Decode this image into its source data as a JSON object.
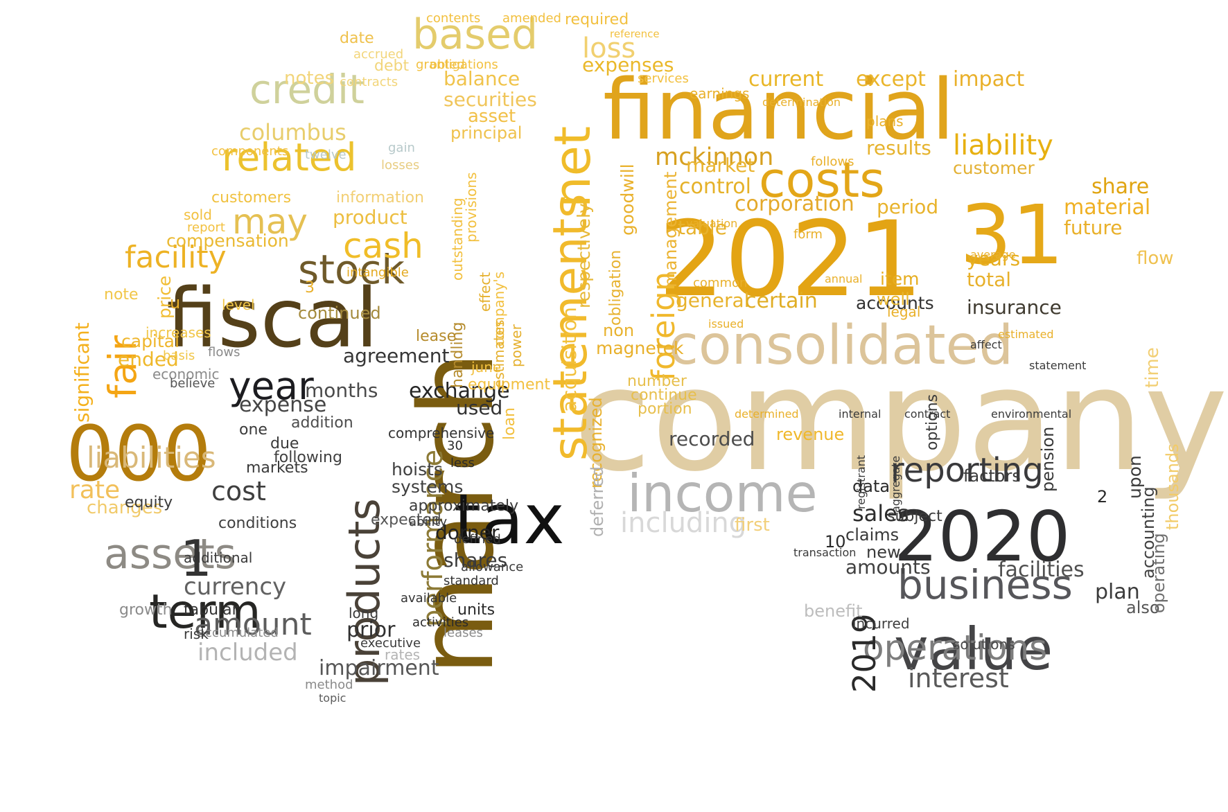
{
  "words": [
    {
      "text": "company",
      "color": "#e0cda4",
      "vertical": false
    },
    {
      "text": "2021",
      "color": "#e3a414",
      "vertical": false
    },
    {
      "text": "march",
      "color": "#7a5c10",
      "vertical": true
    },
    {
      "text": "financial",
      "color": "#e0a41c",
      "vertical": false
    },
    {
      "text": "fiscal",
      "color": "#544019",
      "vertical": false
    },
    {
      "text": "000",
      "color": "#b47c0c",
      "vertical": false
    },
    {
      "text": "tax",
      "color": "#111111",
      "vertical": false
    },
    {
      "text": "2020",
      "color": "#2e2e30",
      "vertical": false
    },
    {
      "text": "31",
      "color": "#e5a818",
      "vertical": false
    },
    {
      "text": "value",
      "color": "#444446",
      "vertical": false
    },
    {
      "text": "consolidated",
      "color": "#dcc49a",
      "vertical": false
    },
    {
      "text": "costs",
      "color": "#e3a618",
      "vertical": false
    },
    {
      "text": "business",
      "color": "#56565a",
      "vertical": false
    },
    {
      "text": "income",
      "color": "#b5b5b5",
      "vertical": false
    },
    {
      "text": "statements",
      "color": "#f1ba2c",
      "vertical": true
    },
    {
      "text": "products",
      "color": "#4a4238",
      "vertical": true
    },
    {
      "text": "net",
      "color": "#f0bc2a",
      "vertical": true
    },
    {
      "text": "assets",
      "color": "#8d8a84",
      "vertical": false
    },
    {
      "text": "term",
      "color": "#262624",
      "vertical": false
    },
    {
      "text": "stock",
      "color": "#6f5a2a",
      "vertical": false
    },
    {
      "text": "year",
      "color": "#1c1c20",
      "vertical": false
    },
    {
      "text": "credit",
      "color": "#cfd19b",
      "vertical": false
    },
    {
      "text": "based",
      "color": "#e4cc6c",
      "vertical": false
    },
    {
      "text": "related",
      "color": "#ecc22e",
      "vertical": false
    },
    {
      "text": "may",
      "color": "#e5c052",
      "vertical": false
    },
    {
      "text": "cash",
      "color": "#f0bd28",
      "vertical": false
    },
    {
      "text": "fair",
      "color": "#f4a514",
      "vertical": true
    },
    {
      "text": "reporting",
      "color": "#3a3a3c",
      "vertical": false
    },
    {
      "text": "operations",
      "color": "#7d7d7d",
      "vertical": false
    },
    {
      "text": "foreign",
      "color": "#f0b82c",
      "vertical": true
    },
    {
      "text": "2019",
      "color": "#2a2a2a",
      "vertical": true
    },
    {
      "text": "liability",
      "color": "#e7b010",
      "vertical": false
    },
    {
      "text": "liabilities",
      "color": "#d9b878",
      "vertical": false
    },
    {
      "text": "performance",
      "color": "#8c7a36",
      "vertical": true
    },
    {
      "text": "amount",
      "color": "#5c5c5c",
      "vertical": false
    },
    {
      "text": "interest",
      "color": "#595959",
      "vertical": false
    },
    {
      "text": "including",
      "color": "#d8d8d8",
      "vertical": false
    },
    {
      "text": "facility",
      "color": "#edb224",
      "vertical": false
    },
    {
      "text": "mckinnon",
      "color": "#d7a020",
      "vertical": false
    },
    {
      "text": "columbus",
      "color": "#e8cd6c",
      "vertical": false
    },
    {
      "text": "loss",
      "color": "#f1d070",
      "vertical": false
    },
    {
      "text": "exchange",
      "color": "#262626",
      "vertical": false
    },
    {
      "text": "rate",
      "color": "#f2c05a",
      "vertical": false
    },
    {
      "text": "insurance",
      "color": "#3f3a2f",
      "vertical": false
    },
    {
      "text": "material",
      "color": "#efb022",
      "vertical": false
    },
    {
      "text": "share",
      "color": "#e0a410",
      "vertical": false
    },
    {
      "text": "sales",
      "color": "#2c2c2c",
      "vertical": false
    },
    {
      "text": "included",
      "color": "#b3b3b3",
      "vertical": false
    },
    {
      "text": "currency",
      "color": "#616161",
      "vertical": false
    },
    {
      "text": "cost",
      "color": "#3f3f3f",
      "vertical": false
    },
    {
      "text": "impairment",
      "color": "#565656",
      "vertical": false
    },
    {
      "text": "prior",
      "color": "#303030",
      "vertical": false
    },
    {
      "text": "expense",
      "color": "#454545",
      "vertical": false
    },
    {
      "text": "dorner",
      "color": "#222222",
      "vertical": false
    },
    {
      "text": "shares",
      "color": "#3a3a3a",
      "vertical": false
    },
    {
      "text": "facilities",
      "color": "#4f4f4f",
      "vertical": false
    },
    {
      "text": "plan",
      "color": "#3b3b3b",
      "vertical": false
    },
    {
      "text": "amounts",
      "color": "#404040",
      "vertical": false
    },
    {
      "text": "agreement",
      "color": "#353535",
      "vertical": false
    },
    {
      "text": "months",
      "color": "#4a4a4a",
      "vertical": false
    },
    {
      "text": "used",
      "color": "#333333",
      "vertical": false
    },
    {
      "text": "hoists",
      "color": "#3f3f3f",
      "vertical": false
    },
    {
      "text": "systems",
      "color": "#3f3f3f",
      "vertical": false
    },
    {
      "text": "expected",
      "color": "#555555",
      "vertical": false
    },
    {
      "text": "approximately",
      "color": "#3a3a3a",
      "vertical": false
    },
    {
      "text": "current",
      "color": "#e9b627",
      "vertical": false
    },
    {
      "text": "except",
      "color": "#eab52b",
      "vertical": false
    },
    {
      "text": "impact",
      "color": "#e9b02a",
      "vertical": false
    },
    {
      "text": "results",
      "color": "#e6b32e",
      "vertical": false
    },
    {
      "text": "customer",
      "color": "#e3b134",
      "vertical": false
    },
    {
      "text": "control",
      "color": "#e5b128",
      "vertical": false
    },
    {
      "text": "corporation",
      "color": "#e4a92a",
      "vertical": false
    },
    {
      "text": "market",
      "color": "#e9b430",
      "vertical": false
    },
    {
      "text": "period",
      "color": "#e8b32c",
      "vertical": false
    },
    {
      "text": "future",
      "color": "#e9b02a",
      "vertical": false
    },
    {
      "text": "years",
      "color": "#e6ae20",
      "vertical": false
    },
    {
      "text": "total",
      "color": "#e7b02a",
      "vertical": false
    },
    {
      "text": "table",
      "color": "#e7b22c",
      "vertical": false
    },
    {
      "text": "general",
      "color": "#e7b22c",
      "vertical": false
    },
    {
      "text": "certain",
      "color": "#e0ad24",
      "vertical": false
    },
    {
      "text": "accounts",
      "color": "#323232",
      "vertical": false
    },
    {
      "text": "recorded",
      "color": "#4c4c4c",
      "vertical": false
    },
    {
      "text": "revenue",
      "color": "#f0b82c",
      "vertical": false
    },
    {
      "text": "expenses",
      "color": "#eab82a",
      "vertical": false
    },
    {
      "text": "balance",
      "color": "#f0c34a",
      "vertical": false
    },
    {
      "text": "securities",
      "color": "#f0c55a",
      "vertical": false
    },
    {
      "text": "asset",
      "color": "#f1c048",
      "vertical": false
    },
    {
      "text": "principal",
      "color": "#efc14c",
      "vertical": false
    },
    {
      "text": "notes",
      "color": "#f2d57a",
      "vertical": false
    },
    {
      "text": "product",
      "color": "#ecbe40",
      "vertical": false
    },
    {
      "text": "compensation",
      "color": "#eab932",
      "vertical": false
    },
    {
      "text": "customers",
      "color": "#f0c140",
      "vertical": false
    },
    {
      "text": "information",
      "color": "#f2cf74",
      "vertical": false
    },
    {
      "text": "continued",
      "color": "#a48a3c",
      "vertical": false
    },
    {
      "text": "capital",
      "color": "#efb62c",
      "vertical": false
    },
    {
      "text": "ended",
      "color": "#efb82a",
      "vertical": false
    },
    {
      "text": "changes",
      "color": "#f1ca6a",
      "vertical": false
    },
    {
      "text": "significant",
      "color": "#f4b01c",
      "vertical": true
    },
    {
      "text": "acquisition",
      "color": "#f2c03a",
      "vertical": true
    },
    {
      "text": "respectively",
      "color": "#e7b837",
      "vertical": true
    },
    {
      "text": "management",
      "color": "#ebb434",
      "vertical": true
    },
    {
      "text": "goodwill",
      "color": "#e9b12c",
      "vertical": true
    },
    {
      "text": "obligation",
      "color": "#e7b230",
      "vertical": true
    },
    {
      "text": "recognized",
      "color": "#e8b12e",
      "vertical": true
    },
    {
      "text": "deferred",
      "color": "#b0b0b0",
      "vertical": true
    },
    {
      "text": "magnetek",
      "color": "#e8b02a",
      "vertical": false
    },
    {
      "text": "non",
      "color": "#e8b22e",
      "vertical": false
    },
    {
      "text": "item",
      "color": "#e6ad1f",
      "vertical": false
    },
    {
      "text": "well",
      "color": "#e8b62e",
      "vertical": false
    },
    {
      "text": "data",
      "color": "#2a2a2a",
      "vertical": false
    },
    {
      "text": "claims",
      "color": "#373737",
      "vertical": false
    },
    {
      "text": "subject",
      "color": "#3a3a3a",
      "vertical": false
    },
    {
      "text": "new",
      "color": "#3a3a3a",
      "vertical": false
    },
    {
      "text": "factors",
      "color": "#3a3a3a",
      "vertical": false
    },
    {
      "text": "benefit",
      "color": "#bdbdbd",
      "vertical": false
    },
    {
      "text": "also",
      "color": "#555555",
      "vertical": false
    },
    {
      "text": "solutions",
      "color": "#4a4a4a",
      "vertical": false
    },
    {
      "text": "flow",
      "color": "#efc14f",
      "vertical": false
    },
    {
      "text": "portion",
      "color": "#e7bf4c",
      "vertical": false
    },
    {
      "text": "continue",
      "color": "#e7bf4c",
      "vertical": false
    },
    {
      "text": "number",
      "color": "#e7bf4c",
      "vertical": false
    },
    {
      "text": "first",
      "color": "#f2cf7a",
      "vertical": false
    },
    {
      "text": "incurred",
      "color": "#3f3f3f",
      "vertical": false
    },
    {
      "text": "options",
      "color": "#3a3a3a",
      "vertical": true
    },
    {
      "text": "pension",
      "color": "#3a3a3a",
      "vertical": true
    },
    {
      "text": "upon",
      "color": "#3a3a3a",
      "vertical": true
    },
    {
      "text": "accounting",
      "color": "#3f3f3f",
      "vertical": true
    },
    {
      "text": "operating",
      "color": "#6f6f6f",
      "vertical": true
    },
    {
      "text": "thousands",
      "color": "#f2cb68",
      "vertical": true
    },
    {
      "text": "time",
      "color": "#f2cf74",
      "vertical": true
    },
    {
      "text": "equity",
      "color": "#3a3a3a",
      "vertical": false
    },
    {
      "text": "conditions",
      "color": "#3f3f3f",
      "vertical": false
    },
    {
      "text": "following",
      "color": "#3f3f3f",
      "vertical": false
    },
    {
      "text": "markets",
      "color": "#3a3a3a",
      "vertical": false
    },
    {
      "text": "addition",
      "color": "#4c4c4c",
      "vertical": false
    },
    {
      "text": "one",
      "color": "#3a3a3a",
      "vertical": false
    },
    {
      "text": "due",
      "color": "#3a3a3a",
      "vertical": false
    },
    {
      "text": "additional",
      "color": "#3a3a3a",
      "vertical": false
    },
    {
      "text": "tabular",
      "color": "#333333",
      "vertical": false
    },
    {
      "text": "growth",
      "color": "#8a8a8a",
      "vertical": false
    },
    {
      "text": "accumulated",
      "color": "#8a8a8a",
      "vertical": false
    },
    {
      "text": "risk",
      "color": "#3a3a3a",
      "vertical": false
    },
    {
      "text": "rates",
      "color": "#b3b3b3",
      "vertical": false
    },
    {
      "text": "method",
      "color": "#8a8a8a",
      "vertical": false
    },
    {
      "text": "topic",
      "color": "#5c5c5c",
      "vertical": false
    },
    {
      "text": "long",
      "color": "#3a3a3a",
      "vertical": false
    },
    {
      "text": "executive",
      "color": "#3a3a3a",
      "vertical": false
    },
    {
      "text": "units",
      "color": "#2a2a2a",
      "vertical": false
    },
    {
      "text": "activities",
      "color": "#2a2a2a",
      "vertical": false
    },
    {
      "text": "leases",
      "color": "#8a8a8a",
      "vertical": false
    },
    {
      "text": "available",
      "color": "#333333",
      "vertical": false
    },
    {
      "text": "standard",
      "color": "#333333",
      "vertical": false
    },
    {
      "text": "allowance",
      "color": "#3a3a3a",
      "vertical": false
    },
    {
      "text": "defined",
      "color": "#333333",
      "vertical": false
    },
    {
      "text": "ability",
      "color": "#3a3a3a",
      "vertical": false
    },
    {
      "text": "less",
      "color": "#2a2a2a",
      "vertical": false
    },
    {
      "text": "30",
      "color": "#2a2a2a",
      "vertical": false
    },
    {
      "text": "comprehensive",
      "color": "#333333",
      "vertical": false
    },
    {
      "text": "loan",
      "color": "#f2c03f",
      "vertical": true
    },
    {
      "text": "lease",
      "color": "#b58b2c",
      "vertical": false
    },
    {
      "text": "handling",
      "color": "#b58b2c",
      "vertical": true
    },
    {
      "text": "equipment",
      "color": "#f2c03f",
      "vertical": false
    },
    {
      "text": "june",
      "color": "#f2c03f",
      "vertical": false
    },
    {
      "text": "company's",
      "color": "#f2c03f",
      "vertical": true
    },
    {
      "text": "power",
      "color": "#e5b02e",
      "vertical": true
    },
    {
      "text": "estimates",
      "color": "#e5b02e",
      "vertical": true
    },
    {
      "text": "effect",
      "color": "#e5b02e",
      "vertical": true
    },
    {
      "text": "intangible",
      "color": "#e3a91f",
      "vertical": false
    },
    {
      "text": "outstanding",
      "color": "#f2c03f",
      "vertical": true
    },
    {
      "text": "provisions",
      "color": "#f2c03f",
      "vertical": true
    },
    {
      "text": "price",
      "color": "#f1bd34",
      "vertical": true
    },
    {
      "text": "note",
      "color": "#f1c648",
      "vertical": false
    },
    {
      "text": "level",
      "color": "#f1c648",
      "vertical": false
    },
    {
      "text": "increases",
      "color": "#f1c648",
      "vertical": false
    },
    {
      "text": "economic",
      "color": "#8a8a8a",
      "vertical": false
    },
    {
      "text": "believe",
      "color": "#555555",
      "vertical": false
    },
    {
      "text": "basis",
      "color": "#f1c648",
      "vertical": false
    },
    {
      "text": "flows",
      "color": "#8a8a8a",
      "vertical": false
    },
    {
      "text": "sold",
      "color": "#f2c03f",
      "vertical": false
    },
    {
      "text": "report",
      "color": "#f2c03f",
      "vertical": false
    },
    {
      "text": "components",
      "color": "#f2c03f",
      "vertical": false
    },
    {
      "text": "twelve",
      "color": "#b7c9ca",
      "vertical": false
    },
    {
      "text": "gain",
      "color": "#b7c9ca",
      "vertical": false
    },
    {
      "text": "losses",
      "color": "#e8cd82",
      "vertical": false
    },
    {
      "text": "contracts",
      "color": "#f2d57a",
      "vertical": false
    },
    {
      "text": "debt",
      "color": "#f2d57a",
      "vertical": false
    },
    {
      "text": "accrued",
      "color": "#f2d57a",
      "vertical": false
    },
    {
      "text": "date",
      "color": "#efc14c",
      "vertical": false
    },
    {
      "text": "obligations",
      "color": "#f2c03f",
      "vertical": false
    },
    {
      "text": "contents",
      "color": "#f2c03f",
      "vertical": false
    },
    {
      "text": "amended",
      "color": "#f2c03f",
      "vertical": false
    },
    {
      "text": "required",
      "color": "#f2c03f",
      "vertical": false
    },
    {
      "text": "reference",
      "color": "#f2c03f",
      "vertical": false
    },
    {
      "text": "granted",
      "color": "#f2c03f",
      "vertical": false
    },
    {
      "text": "services",
      "color": "#f2c03f",
      "vertical": false
    },
    {
      "text": "earnings",
      "color": "#e9b02a",
      "vertical": false
    },
    {
      "text": "determination",
      "color": "#e9b02a",
      "vertical": false
    },
    {
      "text": "plans",
      "color": "#e9b02a",
      "vertical": false
    },
    {
      "text": "follows",
      "color": "#e9b02a",
      "vertical": false
    },
    {
      "text": "form",
      "color": "#e9b02a",
      "vertical": false
    },
    {
      "text": "valuation",
      "color": "#e9b02a",
      "vertical": false
    },
    {
      "text": "common",
      "color": "#e9b02a",
      "vertical": false
    },
    {
      "text": "annual",
      "color": "#e9b02a",
      "vertical": false
    },
    {
      "text": "average",
      "color": "#e9b02a",
      "vertical": false
    },
    {
      "text": "estimated",
      "color": "#e9b02a",
      "vertical": false
    },
    {
      "text": "affect",
      "color": "#3a3a3a",
      "vertical": false
    },
    {
      "text": "statement",
      "color": "#3a3a3a",
      "vertical": false
    },
    {
      "text": "legal",
      "color": "#e9b02a",
      "vertical": false
    },
    {
      "text": "internal",
      "color": "#3a3a3a",
      "vertical": false
    },
    {
      "text": "contract",
      "color": "#3a3a3a",
      "vertical": false
    },
    {
      "text": "environmental",
      "color": "#3a3a3a",
      "vertical": false
    },
    {
      "text": "determined",
      "color": "#e9b02a",
      "vertical": false
    },
    {
      "text": "issued",
      "color": "#e9b02a",
      "vertical": false
    },
    {
      "text": "transaction",
      "color": "#3a3a3a",
      "vertical": false
    },
    {
      "text": "registrant",
      "color": "#3a3a3a",
      "vertical": true
    },
    {
      "text": "aggregate",
      "color": "#3a3a3a",
      "vertical": true
    },
    {
      "text": "10",
      "color": "#2a2a2a",
      "vertical": false
    },
    {
      "text": "2",
      "color": "#2a2a2a",
      "vertical": false
    },
    {
      "text": "1",
      "color": "#333333",
      "vertical": false
    },
    {
      "text": "u",
      "color": "#e9b02a",
      "vertical": false
    },
    {
      "text": "3",
      "color": "#e9b02a",
      "vertical": false
    }
  ]
}
